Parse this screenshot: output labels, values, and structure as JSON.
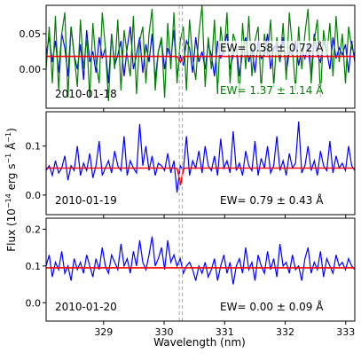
{
  "figure": {
    "xlabel": "Wavelength (nm)",
    "ylabel_main": "Flux (10",
    "ylabel_exp1": "−14",
    "ylabel_mid": " erg s",
    "ylabel_exp2": "−1",
    "ylabel_unit": " Å",
    "ylabel_exp3": "−1",
    "ylabel_end": ")",
    "x_ticks": [
      "329",
      "330",
      "331",
      "332",
      "333"
    ],
    "colors": {
      "data": "#0000ff",
      "data2": "#008000",
      "fit": "#ff0000",
      "marker": "#aaaaaa"
    }
  },
  "chart_data": [
    {
      "type": "line",
      "panel": "top",
      "date_label": "2010-01-18",
      "annotations": [
        "EW= 0.58 ±  0.72 Å",
        "EW= 1.37 ±  1.14 Å"
      ],
      "xlim": [
        328.05,
        333.15
      ],
      "ylim": [
        -0.055,
        0.09
      ],
      "y_ticks": [
        0.0,
        0.05
      ],
      "y_tick_labels": [
        "0.00",
        "0.05"
      ],
      "continuum": 0.018,
      "absorption_center": 330.27,
      "absorption_depth": 0.008,
      "series": [
        {
          "color": "#0000ff",
          "values": [
            0.02,
            0.045,
            0.01,
            0.04,
            -0.005,
            0.05,
            0.03,
            -0.01,
            0.06,
            0.02,
            0.0,
            0.035,
            -0.015,
            0.055,
            0.01,
            0.025,
            -0.005,
            0.045,
            0.015,
            0.03,
            -0.02,
            0.05,
            0.005,
            0.02,
            0.04,
            -0.01,
            0.03,
            0.06,
            0.0,
            0.02,
            0.045,
            -0.005,
            0.035,
            0.01,
            0.05,
            -0.015,
            0.025,
            0.04,
            0.0,
            0.03,
            0.015,
            0.055,
            -0.01,
            0.02,
            0.005,
            0.04,
            0.03,
            -0.005,
            0.045,
            0.01,
            0.025,
            0.0,
            0.035,
            0.02,
            -0.01,
            0.04,
            0.015,
            0.03,
            0.05,
            0.0,
            0.02,
            0.035,
            -0.01,
            0.025,
            0.045,
            0.01,
            0.03,
            -0.005,
            0.04,
            0.015,
            0.02,
            0.05,
            0.0,
            0.03,
            0.035,
            0.01,
            0.045,
            -0.005,
            0.025,
            0.02,
            0.04,
            0.005,
            0.03,
            0.015,
            0.035,
            -0.01,
            0.05,
            0.02,
            0.01,
            0.04,
            0.025,
            0.0,
            0.045,
            0.015,
            0.03,
            0.02,
            0.035,
            -0.005,
            0.04,
            0.01
          ]
        },
        {
          "color": "#008000",
          "values": [
            0.0,
            0.06,
            -0.02,
            0.075,
            -0.03,
            0.05,
            0.08,
            -0.04,
            0.06,
            0.02,
            -0.025,
            0.07,
            0.0,
            0.045,
            -0.04,
            0.065,
            0.01,
            -0.02,
            0.08,
            0.03,
            -0.045,
            0.05,
            0.0,
            0.07,
            -0.03,
            0.055,
            0.02,
            -0.01,
            0.075,
            -0.035,
            0.04,
            0.06,
            -0.02,
            0.05,
            0.085,
            -0.03,
            0.025,
            0.045,
            -0.04,
            0.065,
            0.0,
            0.08,
            -0.02,
            0.04,
            0.06,
            -0.03,
            0.07,
            0.015,
            -0.015,
            0.05,
            0.09,
            -0.025,
            0.045,
            0.0,
            0.07,
            -0.035,
            0.06,
            0.02,
            0.08,
            -0.02,
            0.05,
            0.035,
            -0.04,
            0.065,
            0.0,
            0.075,
            -0.01,
            0.04,
            0.06,
            -0.03,
            0.05,
            0.02,
            0.07,
            -0.025,
            0.045,
            0.01,
            0.065,
            -0.015,
            0.08,
            0.03,
            -0.03,
            0.06,
            0.0,
            0.05,
            0.085,
            -0.02,
            0.04,
            0.07,
            -0.04,
            0.055,
            0.02,
            0.065,
            -0.01,
            0.075,
            0.01,
            0.05,
            -0.02,
            0.06,
            0.03,
            0.02
          ]
        }
      ]
    },
    {
      "type": "line",
      "panel": "middle",
      "date_label": "2010-01-19",
      "annotations": [
        "EW= 0.79 ±  0.43 Å"
      ],
      "xlim": [
        328.05,
        333.15
      ],
      "ylim": [
        -0.04,
        0.17
      ],
      "y_ticks": [
        0.0,
        0.1
      ],
      "y_tick_labels": [
        "0.0",
        "0.1"
      ],
      "continuum": 0.055,
      "absorption_center": 330.27,
      "absorption_depth": 0.035,
      "series": [
        {
          "color": "#0000ff",
          "values": [
            0.05,
            0.06,
            0.04,
            0.07,
            0.045,
            0.055,
            0.08,
            0.03,
            0.06,
            0.05,
            0.1,
            0.04,
            0.065,
            0.05,
            0.085,
            0.035,
            0.06,
            0.11,
            0.04,
            0.055,
            0.07,
            0.045,
            0.09,
            0.06,
            0.05,
            0.12,
            0.04,
            0.07,
            0.055,
            0.045,
            0.145,
            0.06,
            0.1,
            0.05,
            0.08,
            0.04,
            0.065,
            0.06,
            0.05,
            0.085,
            0.045,
            0.07,
            0.005,
            0.06,
            0.05,
            0.12,
            0.04,
            0.07,
            0.055,
            0.09,
            0.045,
            0.1,
            0.06,
            0.05,
            0.08,
            0.04,
            0.115,
            0.055,
            0.07,
            0.045,
            0.13,
            0.05,
            0.065,
            0.04,
            0.09,
            0.06,
            0.05,
            0.11,
            0.04,
            0.075,
            0.055,
            0.1,
            0.045,
            0.06,
            0.12,
            0.05,
            0.07,
            0.04,
            0.085,
            0.055,
            0.065,
            0.15,
            0.045,
            0.06,
            0.1,
            0.05,
            0.07,
            0.04,
            0.09,
            0.06,
            0.05,
            0.11,
            0.045,
            0.08,
            0.055,
            0.065,
            0.05,
            0.1,
            0.06,
            0.05
          ]
        }
      ]
    },
    {
      "type": "line",
      "panel": "bottom",
      "date_label": "2010-01-20",
      "annotations": [
        "EW= 0.00 ±  0.09 Å"
      ],
      "xlim": [
        328.05,
        333.15
      ],
      "ylim": [
        -0.05,
        0.23
      ],
      "y_ticks": [
        0.0,
        0.1,
        0.2
      ],
      "y_tick_labels": [
        "0.0",
        "0.1",
        "0.2"
      ],
      "continuum": 0.095,
      "absorption_center": 330.27,
      "absorption_depth": 0.0,
      "series": [
        {
          "color": "#0000ff",
          "values": [
            0.1,
            0.13,
            0.07,
            0.11,
            0.09,
            0.14,
            0.08,
            0.1,
            0.06,
            0.12,
            0.09,
            0.11,
            0.08,
            0.13,
            0.1,
            0.07,
            0.12,
            0.09,
            0.15,
            0.1,
            0.08,
            0.13,
            0.11,
            0.09,
            0.16,
            0.1,
            0.12,
            0.08,
            0.14,
            0.1,
            0.17,
            0.11,
            0.09,
            0.13,
            0.18,
            0.1,
            0.12,
            0.15,
            0.09,
            0.17,
            0.11,
            0.13,
            0.1,
            0.12,
            0.08,
            0.1,
            0.11,
            0.09,
            0.06,
            0.1,
            0.08,
            0.11,
            0.07,
            0.09,
            0.12,
            0.06,
            0.1,
            0.13,
            0.08,
            0.11,
            0.05,
            0.1,
            0.12,
            0.08,
            0.15,
            0.09,
            0.11,
            0.06,
            0.13,
            0.1,
            0.08,
            0.14,
            0.09,
            0.12,
            0.07,
            0.16,
            0.1,
            0.11,
            0.08,
            0.13,
            0.09,
            0.1,
            0.06,
            0.12,
            0.15,
            0.08,
            0.11,
            0.09,
            0.14,
            0.07,
            0.12,
            0.1,
            0.08,
            0.13,
            0.1,
            0.11,
            0.09,
            0.12,
            0.1,
            0.09
          ]
        }
      ]
    }
  ]
}
